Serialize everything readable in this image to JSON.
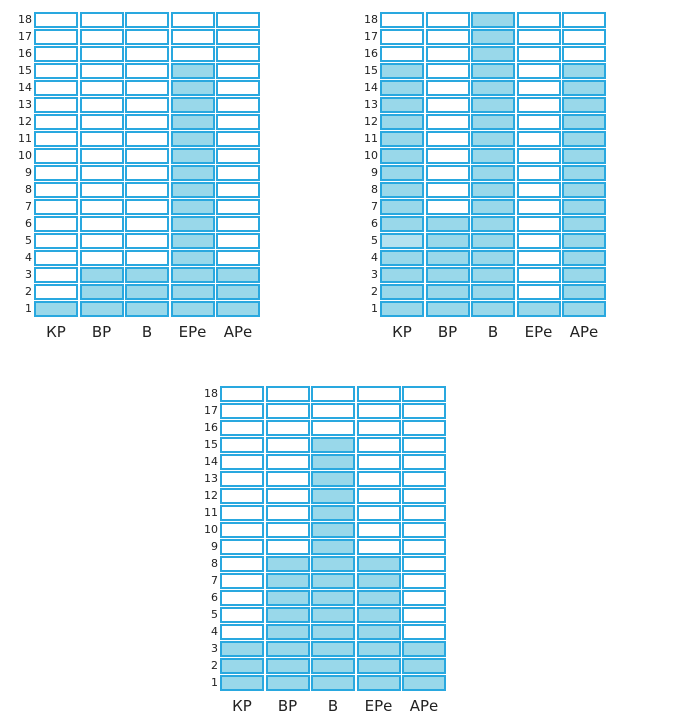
{
  "rows": [
    "1",
    "2",
    "3",
    "4",
    "5",
    "6",
    "7",
    "8",
    "9",
    "10",
    "11",
    "12",
    "13",
    "14",
    "15",
    "16",
    "17",
    "18"
  ],
  "columns": [
    "КР",
    "ВР",
    "В",
    "ЕРе",
    "АРе"
  ],
  "grids": [
    {
      "id": "top-left",
      "filled_to": [
        1,
        3,
        3,
        15,
        3
      ],
      "filled_bottom": [
        1,
        1,
        1,
        1,
        1
      ],
      "light_cells": []
    },
    {
      "id": "top-right",
      "filled_to": [
        15,
        6,
        18,
        1,
        15
      ],
      "filled_bottom": [
        1,
        1,
        1,
        1,
        1
      ],
      "light_cells": [
        {
          "col": 0,
          "row": 5
        }
      ]
    },
    {
      "id": "bottom",
      "filled_to": [
        3,
        8,
        15,
        8,
        3
      ],
      "filled_bottom": [
        1,
        1,
        1,
        1,
        1
      ],
      "light_cells": []
    }
  ],
  "colors": {
    "border": "#29a8df",
    "filled": "#99d8ea",
    "empty": "#ffffff"
  }
}
